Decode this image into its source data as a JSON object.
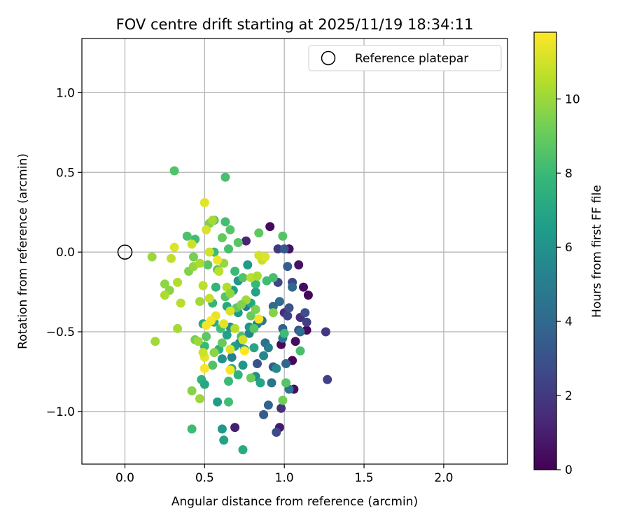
{
  "chart_data": {
    "type": "scatter",
    "title": "FOV centre drift starting at 2025/11/19 18:34:11",
    "xlabel": "Angular distance from reference (arcmin)",
    "ylabel": "Rotation from reference (arcmin)",
    "xlim": [
      -0.27,
      2.4
    ],
    "ylim": [
      -1.33,
      1.34
    ],
    "xticks": [
      0.0,
      0.5,
      1.0,
      1.5,
      2.0
    ],
    "xtick_labels": [
      "0.0",
      "0.5",
      "1.0",
      "1.5",
      "2.0"
    ],
    "yticks": [
      -1.0,
      -0.5,
      0.0,
      0.5,
      1.0
    ],
    "ytick_labels": [
      "−1.0",
      "−0.5",
      "0.0",
      "0.5",
      "1.0"
    ],
    "grid": true,
    "legend": {
      "position": "top-right",
      "entries": [
        {
          "label": "Reference platepar",
          "marker": "open-circle",
          "x": 0.0,
          "y": 0.0
        }
      ]
    },
    "colorbar": {
      "label": "Hours from first FF file",
      "colormap": "viridis",
      "range": [
        0,
        11.8
      ],
      "ticks": [
        0,
        2,
        4,
        6,
        8,
        10
      ],
      "tick_labels": [
        "0",
        "2",
        "4",
        "6",
        "8",
        "10"
      ]
    },
    "colormap_stops": [
      "#440154",
      "#482878",
      "#3e4989",
      "#31688e",
      "#26828e",
      "#1f9e89",
      "#35b779",
      "#6ece58",
      "#b5de2b",
      "#fde725"
    ],
    "points": [
      {
        "x": 0.91,
        "y": 0.16,
        "h": 0.3
      },
      {
        "x": 1.03,
        "y": 0.02,
        "h": 0.5
      },
      {
        "x": 1.09,
        "y": -0.08,
        "h": 0.6
      },
      {
        "x": 1.12,
        "y": -0.22,
        "h": 0.4
      },
      {
        "x": 1.15,
        "y": -0.27,
        "h": 0.2
      },
      {
        "x": 1.14,
        "y": -0.49,
        "h": 0.3
      },
      {
        "x": 1.07,
        "y": -0.56,
        "h": 0.4
      },
      {
        "x": 1.05,
        "y": -0.68,
        "h": 0.2
      },
      {
        "x": 1.06,
        "y": -0.86,
        "h": 0.5
      },
      {
        "x": 0.98,
        "y": -0.58,
        "h": 0.3
      },
      {
        "x": 0.97,
        "y": -1.1,
        "h": 0.8
      },
      {
        "x": 0.69,
        "y": -1.1,
        "h": 1.0
      },
      {
        "x": 0.76,
        "y": 0.07,
        "h": 1.2
      },
      {
        "x": 1.0,
        "y": -0.38,
        "h": 1.5
      },
      {
        "x": 1.1,
        "y": -0.41,
        "h": 1.6
      },
      {
        "x": 1.26,
        "y": -0.5,
        "h": 2.0
      },
      {
        "x": 1.27,
        "y": -0.8,
        "h": 2.3
      },
      {
        "x": 1.14,
        "y": -0.44,
        "h": 2.2
      },
      {
        "x": 0.96,
        "y": 0.02,
        "h": 1.9
      },
      {
        "x": 1.05,
        "y": -0.19,
        "h": 2.6
      },
      {
        "x": 1.02,
        "y": -0.4,
        "h": 2.4
      },
      {
        "x": 0.98,
        "y": -0.98,
        "h": 1.7
      },
      {
        "x": 0.95,
        "y": -1.13,
        "h": 2.7
      },
      {
        "x": 1.13,
        "y": -0.38,
        "h": 2.9
      },
      {
        "x": 1.03,
        "y": -0.35,
        "h": 3.1
      },
      {
        "x": 0.93,
        "y": -0.72,
        "h": 3.3
      },
      {
        "x": 1.0,
        "y": 0.02,
        "h": 3.2
      },
      {
        "x": 1.02,
        "y": -0.09,
        "h": 3.5
      },
      {
        "x": 0.87,
        "y": -1.02,
        "h": 3.4
      },
      {
        "x": 0.99,
        "y": -0.48,
        "h": 3.6
      },
      {
        "x": 0.9,
        "y": -0.96,
        "h": 3.8
      },
      {
        "x": 0.83,
        "y": -0.7,
        "h": 3.0
      },
      {
        "x": 1.09,
        "y": -0.49,
        "h": 2.8
      },
      {
        "x": 0.96,
        "y": -0.19,
        "h": 2.5
      },
      {
        "x": 0.93,
        "y": -0.34,
        "h": 4.1
      },
      {
        "x": 1.1,
        "y": -0.5,
        "h": 4.3
      },
      {
        "x": 1.05,
        "y": -0.22,
        "h": 4.0
      },
      {
        "x": 0.88,
        "y": -0.57,
        "h": 4.4
      },
      {
        "x": 0.92,
        "y": -0.82,
        "h": 4.6
      },
      {
        "x": 1.01,
        "y": -0.7,
        "h": 3.9
      },
      {
        "x": 0.97,
        "y": -0.31,
        "h": 4.2
      },
      {
        "x": 0.99,
        "y": -0.54,
        "h": 4.8
      },
      {
        "x": 1.03,
        "y": -0.86,
        "h": 4.5
      },
      {
        "x": 0.76,
        "y": -0.34,
        "h": 4.9
      },
      {
        "x": 0.86,
        "y": -0.43,
        "h": 4.7
      },
      {
        "x": 0.67,
        "y": -0.66,
        "h": 5.1
      },
      {
        "x": 0.83,
        "y": -0.45,
        "h": 5.2
      },
      {
        "x": 0.9,
        "y": -0.6,
        "h": 5.0
      },
      {
        "x": 0.72,
        "y": -0.57,
        "h": 5.3
      },
      {
        "x": 0.87,
        "y": -0.65,
        "h": 5.5
      },
      {
        "x": 0.78,
        "y": -0.51,
        "h": 5.4
      },
      {
        "x": 0.95,
        "y": -0.73,
        "h": 5.6
      },
      {
        "x": 0.82,
        "y": -0.78,
        "h": 5.8
      },
      {
        "x": 0.61,
        "y": -0.67,
        "h": 6.0
      },
      {
        "x": 0.66,
        "y": -0.47,
        "h": 5.9
      },
      {
        "x": 0.74,
        "y": -0.71,
        "h": 6.2
      },
      {
        "x": 0.58,
        "y": -0.94,
        "h": 6.5
      },
      {
        "x": 0.61,
        "y": -1.11,
        "h": 6.3
      },
      {
        "x": 0.62,
        "y": -1.18,
        "h": 6.8
      },
      {
        "x": 0.74,
        "y": -1.24,
        "h": 7.2
      },
      {
        "x": 0.78,
        "y": -0.47,
        "h": 6.1
      },
      {
        "x": 0.71,
        "y": -0.38,
        "h": 6.4
      },
      {
        "x": 0.69,
        "y": -0.59,
        "h": 6.6
      },
      {
        "x": 0.64,
        "y": -0.52,
        "h": 6.7
      },
      {
        "x": 0.75,
        "y": -0.61,
        "h": 6.9
      },
      {
        "x": 0.79,
        "y": -0.32,
        "h": 7.0
      },
      {
        "x": 0.64,
        "y": -0.34,
        "h": 7.1
      },
      {
        "x": 0.56,
        "y": -0.44,
        "h": 7.3
      },
      {
        "x": 0.59,
        "y": -0.61,
        "h": 7.4
      },
      {
        "x": 0.67,
        "y": -0.73,
        "h": 7.5
      },
      {
        "x": 0.71,
        "y": -0.77,
        "h": 7.6
      },
      {
        "x": 0.81,
        "y": -0.6,
        "h": 7.0
      },
      {
        "x": 0.85,
        "y": -0.82,
        "h": 6.9
      },
      {
        "x": 0.82,
        "y": -0.25,
        "h": 6.8
      },
      {
        "x": 0.77,
        "y": -0.08,
        "h": 6.4
      },
      {
        "x": 0.71,
        "y": -0.18,
        "h": 6.2
      },
      {
        "x": 0.68,
        "y": -0.24,
        "h": 6.6
      },
      {
        "x": 0.57,
        "y": -0.22,
        "h": 7.7
      },
      {
        "x": 0.55,
        "y": -0.32,
        "h": 7.8
      },
      {
        "x": 0.49,
        "y": -0.45,
        "h": 7.2
      },
      {
        "x": 0.5,
        "y": -0.59,
        "h": 7.9
      },
      {
        "x": 0.48,
        "y": -0.8,
        "h": 7.5
      },
      {
        "x": 0.5,
        "y": -0.83,
        "h": 7.1
      },
      {
        "x": 0.42,
        "y": -1.11,
        "h": 8.1
      },
      {
        "x": 0.65,
        "y": -0.94,
        "h": 8.2
      },
      {
        "x": 0.63,
        "y": 0.47,
        "h": 8.3
      },
      {
        "x": 0.31,
        "y": 0.51,
        "h": 8.5
      },
      {
        "x": 0.56,
        "y": 0.2,
        "h": 8.4
      },
      {
        "x": 0.63,
        "y": 0.19,
        "h": 8.2
      },
      {
        "x": 0.66,
        "y": 0.14,
        "h": 8.6
      },
      {
        "x": 0.71,
        "y": 0.06,
        "h": 8.7
      },
      {
        "x": 0.84,
        "y": 0.12,
        "h": 8.8
      },
      {
        "x": 0.99,
        "y": 0.1,
        "h": 8.6
      },
      {
        "x": 0.61,
        "y": 0.09,
        "h": 8.9
      },
      {
        "x": 0.65,
        "y": 0.02,
        "h": 8.3
      },
      {
        "x": 0.56,
        "y": 0.0,
        "h": 8.0
      },
      {
        "x": 0.44,
        "y": 0.08,
        "h": 8.1
      },
      {
        "x": 0.39,
        "y": 0.1,
        "h": 8.4
      },
      {
        "x": 0.52,
        "y": -0.08,
        "h": 8.7
      },
      {
        "x": 0.58,
        "y": -0.11,
        "h": 8.8
      },
      {
        "x": 0.69,
        "y": -0.12,
        "h": 8.0
      },
      {
        "x": 0.74,
        "y": -0.16,
        "h": 8.5
      },
      {
        "x": 0.82,
        "y": -0.2,
        "h": 7.9
      },
      {
        "x": 0.89,
        "y": -0.18,
        "h": 8.1
      },
      {
        "x": 0.93,
        "y": -0.16,
        "h": 8.3
      },
      {
        "x": 0.63,
        "y": -0.28,
        "h": 8.6
      },
      {
        "x": 0.7,
        "y": -0.35,
        "h": 8.9
      },
      {
        "x": 0.79,
        "y": -0.4,
        "h": 9.0
      },
      {
        "x": 0.81,
        "y": -0.48,
        "h": 8.7
      },
      {
        "x": 0.73,
        "y": -0.53,
        "h": 8.4
      },
      {
        "x": 0.6,
        "y": -0.48,
        "h": 8.2
      },
      {
        "x": 0.51,
        "y": -0.53,
        "h": 8.8
      },
      {
        "x": 0.55,
        "y": -0.71,
        "h": 8.5
      },
      {
        "x": 0.65,
        "y": -0.81,
        "h": 8.0
      },
      {
        "x": 0.79,
        "y": -0.79,
        "h": 9.1
      },
      {
        "x": 0.99,
        "y": -0.93,
        "h": 9.2
      },
      {
        "x": 1.01,
        "y": -0.82,
        "h": 8.6
      },
      {
        "x": 1.1,
        "y": -0.62,
        "h": 8.3
      },
      {
        "x": 1.0,
        "y": -0.51,
        "h": 8.1
      },
      {
        "x": 0.44,
        "y": -0.55,
        "h": 9.3
      },
      {
        "x": 0.42,
        "y": -0.87,
        "h": 9.6
      },
      {
        "x": 0.47,
        "y": -0.92,
        "h": 10.0
      },
      {
        "x": 0.19,
        "y": -0.56,
        "h": 10.1
      },
      {
        "x": 0.33,
        "y": -0.48,
        "h": 10.2
      },
      {
        "x": 0.25,
        "y": -0.2,
        "h": 9.8
      },
      {
        "x": 0.28,
        "y": -0.24,
        "h": 9.7
      },
      {
        "x": 0.25,
        "y": -0.27,
        "h": 10.3
      },
      {
        "x": 0.35,
        "y": -0.32,
        "h": 10.5
      },
      {
        "x": 0.33,
        "y": -0.19,
        "h": 10.4
      },
      {
        "x": 0.4,
        "y": -0.12,
        "h": 9.5
      },
      {
        "x": 0.43,
        "y": -0.09,
        "h": 9.9
      },
      {
        "x": 0.49,
        "y": -0.21,
        "h": 10.6
      },
      {
        "x": 0.53,
        "y": -0.29,
        "h": 10.8
      },
      {
        "x": 0.47,
        "y": -0.31,
        "h": 10.1
      },
      {
        "x": 0.17,
        "y": -0.03,
        "h": 10.0
      },
      {
        "x": 0.29,
        "y": -0.04,
        "h": 10.7
      },
      {
        "x": 0.42,
        "y": 0.05,
        "h": 10.9
      },
      {
        "x": 0.53,
        "y": 0.18,
        "h": 9.4
      },
      {
        "x": 0.55,
        "y": 0.2,
        "h": 10.2
      },
      {
        "x": 0.53,
        "y": 0.0,
        "h": 11.0
      },
      {
        "x": 0.43,
        "y": -0.03,
        "h": 9.3
      },
      {
        "x": 0.5,
        "y": 0.31,
        "h": 11.3
      },
      {
        "x": 0.51,
        "y": 0.14,
        "h": 11.1
      },
      {
        "x": 0.31,
        "y": 0.03,
        "h": 11.2
      },
      {
        "x": 0.47,
        "y": -0.07,
        "h": 10.3
      },
      {
        "x": 0.59,
        "y": -0.12,
        "h": 10.6
      },
      {
        "x": 0.62,
        "y": -0.07,
        "h": 9.9
      },
      {
        "x": 0.58,
        "y": -0.05,
        "h": 11.5
      },
      {
        "x": 0.64,
        "y": -0.22,
        "h": 10.4
      },
      {
        "x": 0.66,
        "y": -0.26,
        "h": 9.8
      },
      {
        "x": 0.57,
        "y": -0.4,
        "h": 11.4
      },
      {
        "x": 0.51,
        "y": -0.46,
        "h": 11.6
      },
      {
        "x": 0.54,
        "y": -0.43,
        "h": 11.7
      },
      {
        "x": 0.62,
        "y": -0.45,
        "h": 11.3
      },
      {
        "x": 0.66,
        "y": -0.37,
        "h": 11.1
      },
      {
        "x": 0.69,
        "y": -0.48,
        "h": 10.5
      },
      {
        "x": 0.74,
        "y": -0.55,
        "h": 11.0
      },
      {
        "x": 0.66,
        "y": -0.61,
        "h": 11.2
      },
      {
        "x": 0.75,
        "y": -0.62,
        "h": 11.8
      },
      {
        "x": 0.66,
        "y": -0.74,
        "h": 11.6
      },
      {
        "x": 0.5,
        "y": -0.66,
        "h": 11.4
      },
      {
        "x": 0.5,
        "y": -0.73,
        "h": 11.7
      },
      {
        "x": 0.49,
        "y": -0.63,
        "h": 10.9
      },
      {
        "x": 0.46,
        "y": -0.56,
        "h": 10.0
      },
      {
        "x": 0.79,
        "y": -0.16,
        "h": 10.6
      },
      {
        "x": 0.83,
        "y": -0.15,
        "h": 10.3
      },
      {
        "x": 0.86,
        "y": -0.05,
        "h": 10.8
      },
      {
        "x": 0.84,
        "y": -0.02,
        "h": 11.0
      },
      {
        "x": 0.88,
        "y": -0.03,
        "h": 11.2
      },
      {
        "x": 0.93,
        "y": -0.38,
        "h": 9.6
      },
      {
        "x": 0.84,
        "y": -0.42,
        "h": 11.7
      },
      {
        "x": 0.76,
        "y": -0.3,
        "h": 10.1
      },
      {
        "x": 0.73,
        "y": -0.33,
        "h": 9.5
      },
      {
        "x": 0.82,
        "y": -0.36,
        "h": 9.4
      },
      {
        "x": 0.61,
        "y": -0.57,
        "h": 9.0
      },
      {
        "x": 0.56,
        "y": -0.63,
        "h": 9.7
      }
    ]
  }
}
